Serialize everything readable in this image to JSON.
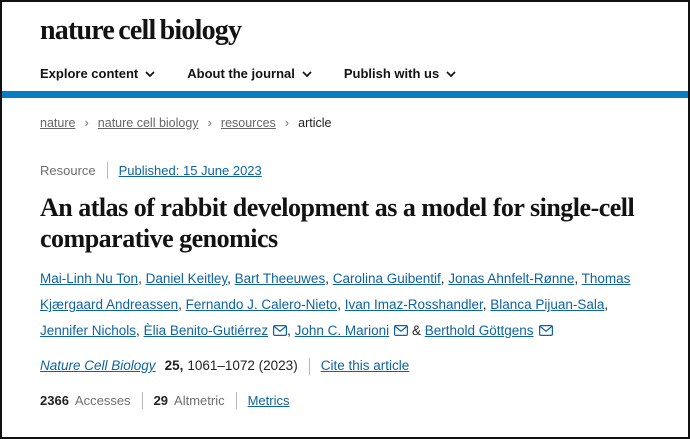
{
  "colors": {
    "accent_bar": "#067dc3",
    "link": "#0d63a5",
    "text": "#121212",
    "muted": "#666666"
  },
  "journal": {
    "logo": "nature cell biology"
  },
  "nav": {
    "items": [
      {
        "id": "explore-content",
        "label": "Explore content"
      },
      {
        "id": "about-the-journal",
        "label": "About the journal"
      },
      {
        "id": "publish-with-us",
        "label": "Publish with us"
      }
    ]
  },
  "breadcrumb": {
    "separator": "›",
    "items": [
      {
        "label": "nature",
        "link": true
      },
      {
        "label": "nature cell biology",
        "link": true
      },
      {
        "label": "resources",
        "link": true
      },
      {
        "label": "article",
        "link": false
      }
    ]
  },
  "article": {
    "type_label": "Resource",
    "published": "Published: 15 June 2023",
    "title": "An atlas of rabbit development as a model for single-cell comparative genomics",
    "authors": [
      {
        "name": "Mai-Linh Nu Ton"
      },
      {
        "name": "Daniel Keitley"
      },
      {
        "name": "Bart Theeuwes"
      },
      {
        "name": "Carolina Guibentif"
      },
      {
        "name": "Jonas Ahnfelt-Rønne"
      },
      {
        "name": "Thomas Kjærgaard Andreassen"
      },
      {
        "name": "Fernando J. Calero-Nieto"
      },
      {
        "name": "Ivan Imaz-Rosshandler"
      },
      {
        "name": "Blanca Pijuan-Sala"
      },
      {
        "name": "Jennifer Nichols"
      },
      {
        "name": "Èlia Benito-Gutiérrez",
        "email": true
      },
      {
        "name": "John C. Marioni",
        "email": true
      },
      {
        "name": "Berthold Göttgens",
        "email": true
      }
    ],
    "citation": {
      "journal": "Nature Cell Biology",
      "volume": "25,",
      "pages_year": "1061–1072 (2023)",
      "cite_label": "Cite this article"
    },
    "metrics": {
      "accesses_count": "2366",
      "accesses_label": "Accesses",
      "altmetric_count": "29",
      "altmetric_label": "Altmetric",
      "metrics_label": "Metrics"
    }
  }
}
